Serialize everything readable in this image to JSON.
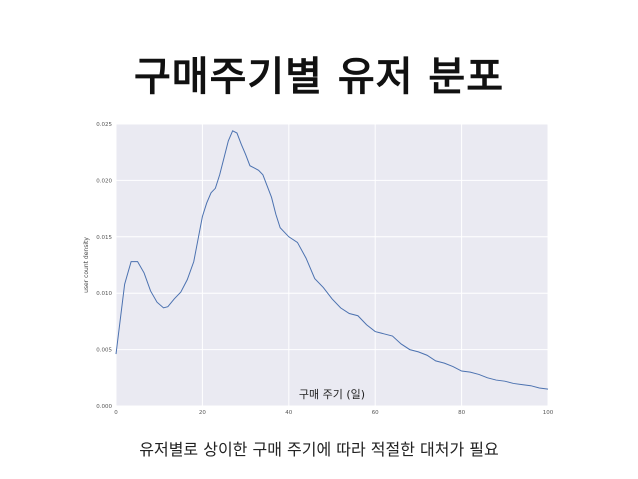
{
  "slide": {
    "title": "구매주기별 유저 분포",
    "caption": "유저별로 상이한 구매 주기에 따라 적절한 대처가 필요"
  },
  "chart_data": {
    "type": "line",
    "title": "",
    "xlabel": "구매 주기 (일)",
    "ylabel": "user count density",
    "xlim": [
      0,
      100
    ],
    "ylim": [
      0.0,
      0.025
    ],
    "xticks": [
      0,
      20,
      40,
      60,
      80,
      100
    ],
    "yticks": [
      "0.000",
      "0.005",
      "0.010",
      "0.015",
      "0.020",
      "0.025"
    ],
    "ytick_values": [
      0.0,
      0.005,
      0.01,
      0.015,
      0.02,
      0.025
    ],
    "grid": true,
    "line_color": "#4c72b0",
    "background_color": "#eaeaf2",
    "series": [
      {
        "x": [
          0,
          2,
          3.5,
          5,
          6.5,
          8,
          9.5,
          11,
          12,
          13.5,
          15,
          16.5,
          18,
          19,
          20,
          21,
          22,
          23,
          24,
          25,
          26,
          27,
          28,
          29,
          30,
          31,
          32,
          33,
          34,
          35,
          36,
          37,
          38,
          40,
          42,
          44,
          46,
          48,
          50,
          52,
          54,
          56,
          58,
          60,
          62,
          64,
          66,
          68,
          70,
          72,
          74,
          76,
          78,
          80,
          82,
          84,
          86,
          88,
          90,
          92,
          94,
          96,
          98,
          100
        ],
        "y": [
          0.0046,
          0.0108,
          0.0128,
          0.0128,
          0.0118,
          0.0102,
          0.0092,
          0.0087,
          0.0088,
          0.0095,
          0.0101,
          0.0112,
          0.0128,
          0.0148,
          0.0168,
          0.018,
          0.0189,
          0.0193,
          0.0205,
          0.022,
          0.0235,
          0.0244,
          0.0242,
          0.0232,
          0.0223,
          0.0213,
          0.0211,
          0.0209,
          0.0205,
          0.0195,
          0.0185,
          0.017,
          0.0158,
          0.015,
          0.0145,
          0.0131,
          0.0113,
          0.0105,
          0.0095,
          0.0087,
          0.0082,
          0.008,
          0.0072,
          0.0066,
          0.0064,
          0.0062,
          0.0055,
          0.005,
          0.0048,
          0.0045,
          0.004,
          0.0038,
          0.0035,
          0.0031,
          0.003,
          0.0028,
          0.0025,
          0.0023,
          0.0022,
          0.002,
          0.0019,
          0.0018,
          0.0016,
          0.0015
        ]
      }
    ]
  }
}
